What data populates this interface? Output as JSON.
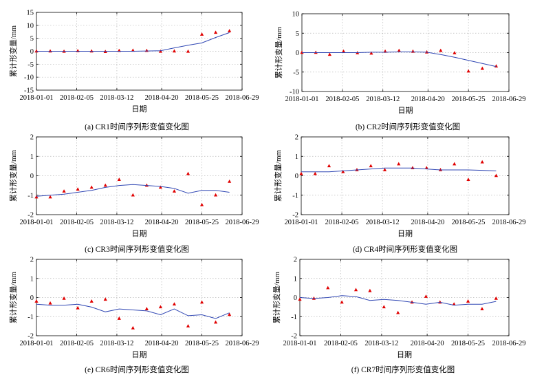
{
  "figure": {
    "subplots": [
      {
        "caption": "(a) CR1时间序列形变值变化图"
      },
      {
        "caption": "(b) CR2时间序列形变值变化图"
      },
      {
        "caption": "(c) CR3时间序列形变值变化图"
      },
      {
        "caption": "(d) CR4时间序列形变值变化图"
      },
      {
        "caption": "(e) CR6时间序列形变值变化图"
      },
      {
        "caption": "(f) CR7时间序列形变值变化图"
      }
    ]
  },
  "chart_data": [
    {
      "type": "line",
      "title": "(a) CR1时间序列形变值变化图",
      "xlabel": "日期",
      "ylabel": "累计形变量/mm",
      "xlim": [
        "2018-01-01",
        "2018-06-29"
      ],
      "ylim": [
        -15,
        15
      ],
      "xticks": [
        "2018-01-01",
        "2018-02-05",
        "2018-03-12",
        "2018-04-20",
        "2018-05-25",
        "2018-06-29"
      ],
      "yticks": [
        -15,
        -10,
        -5,
        0,
        5,
        10,
        15
      ],
      "grid": true,
      "markers": {
        "shape": "triangle",
        "color": "#e00000"
      },
      "line_color": "#2f46b3",
      "series": [
        {
          "kind": "markers",
          "x": [
            "2018-01-01",
            "2018-01-13",
            "2018-01-25",
            "2018-02-06",
            "2018-02-18",
            "2018-03-02",
            "2018-03-14",
            "2018-03-26",
            "2018-04-07",
            "2018-04-19",
            "2018-05-01",
            "2018-05-13",
            "2018-05-25",
            "2018-06-06",
            "2018-06-18"
          ],
          "y": [
            0.0,
            0.0,
            -0.1,
            0.1,
            0.0,
            -0.2,
            0.2,
            0.3,
            0.2,
            -0.1,
            0.0,
            -0.1,
            6.5,
            7.2,
            7.8
          ]
        },
        {
          "kind": "line",
          "x": [
            "2018-01-01",
            "2018-01-13",
            "2018-01-25",
            "2018-02-06",
            "2018-02-18",
            "2018-03-02",
            "2018-03-14",
            "2018-03-26",
            "2018-04-07",
            "2018-04-19",
            "2018-05-01",
            "2018-05-13",
            "2018-05-25",
            "2018-06-06",
            "2018-06-18"
          ],
          "y": [
            0.0,
            0.0,
            0.0,
            0.0,
            0.0,
            0.0,
            0.0,
            0.0,
            0.1,
            0.2,
            1.3,
            2.3,
            3.2,
            5.3,
            7.2
          ]
        }
      ]
    },
    {
      "type": "line",
      "title": "(b) CR2时间序列形变值变化图",
      "xlabel": "日期",
      "ylabel": "累计形变量/mm",
      "xlim": [
        "2018-01-01",
        "2018-06-29"
      ],
      "ylim": [
        -10,
        10
      ],
      "xticks": [
        "2018-01-01",
        "2018-02-05",
        "2018-03-12",
        "2018-04-20",
        "2018-05-25",
        "2018-06-29"
      ],
      "yticks": [
        -10,
        -5,
        0,
        5,
        10
      ],
      "grid": true,
      "markers": {
        "shape": "triangle",
        "color": "#e00000"
      },
      "line_color": "#2f46b3",
      "series": [
        {
          "kind": "markers",
          "x": [
            "2018-01-01",
            "2018-01-13",
            "2018-01-25",
            "2018-02-06",
            "2018-02-18",
            "2018-03-02",
            "2018-03-14",
            "2018-03-26",
            "2018-04-07",
            "2018-04-19",
            "2018-05-01",
            "2018-05-13",
            "2018-05-25",
            "2018-06-06",
            "2018-06-18"
          ],
          "y": [
            0.0,
            0.0,
            -0.5,
            0.3,
            -0.1,
            -0.2,
            0.3,
            0.5,
            0.3,
            0.1,
            0.5,
            -0.1,
            -4.8,
            -4.1,
            -3.5
          ]
        },
        {
          "kind": "line",
          "x": [
            "2018-01-01",
            "2018-01-13",
            "2018-01-25",
            "2018-02-06",
            "2018-02-18",
            "2018-03-02",
            "2018-03-14",
            "2018-03-26",
            "2018-04-07",
            "2018-04-19",
            "2018-05-01",
            "2018-05-13",
            "2018-05-25",
            "2018-06-06",
            "2018-06-18"
          ],
          "y": [
            0.0,
            0.0,
            0.0,
            0.0,
            0.0,
            0.1,
            0.1,
            0.2,
            0.2,
            0.1,
            -0.5,
            -1.2,
            -2.0,
            -2.8,
            -3.6
          ]
        }
      ]
    },
    {
      "type": "line",
      "title": "(c) CR3时间序列形变值变化图",
      "xlabel": "日期",
      "ylabel": "累计形变量/mm",
      "xlim": [
        "2018-01-01",
        "2018-06-29"
      ],
      "ylim": [
        -2,
        2
      ],
      "xticks": [
        "2018-01-01",
        "2018-02-05",
        "2018-03-12",
        "2018-04-20",
        "2018-05-25",
        "2018-06-29"
      ],
      "yticks": [
        -2,
        -1,
        0,
        1,
        2
      ],
      "grid": true,
      "markers": {
        "shape": "triangle",
        "color": "#e00000"
      },
      "line_color": "#2f46b3",
      "series": [
        {
          "kind": "markers",
          "x": [
            "2018-01-01",
            "2018-01-13",
            "2018-01-25",
            "2018-02-06",
            "2018-02-18",
            "2018-03-02",
            "2018-03-14",
            "2018-03-26",
            "2018-04-07",
            "2018-04-19",
            "2018-05-01",
            "2018-05-13",
            "2018-05-25",
            "2018-06-06",
            "2018-06-18"
          ],
          "y": [
            -1.1,
            -1.1,
            -0.8,
            -0.7,
            -0.6,
            -0.5,
            -0.2,
            -1.0,
            -0.5,
            -0.6,
            -0.8,
            0.1,
            -1.5,
            -1.0,
            -0.3
          ]
        },
        {
          "kind": "line",
          "x": [
            "2018-01-01",
            "2018-01-13",
            "2018-01-25",
            "2018-02-06",
            "2018-02-18",
            "2018-03-02",
            "2018-03-14",
            "2018-03-26",
            "2018-04-07",
            "2018-04-19",
            "2018-05-01",
            "2018-05-13",
            "2018-05-25",
            "2018-06-06",
            "2018-06-18"
          ],
          "y": [
            -1.05,
            -1.0,
            -0.95,
            -0.85,
            -0.75,
            -0.6,
            -0.5,
            -0.45,
            -0.5,
            -0.55,
            -0.65,
            -0.9,
            -0.75,
            -0.75,
            -0.85
          ]
        }
      ]
    },
    {
      "type": "line",
      "title": "(d) CR4时间序列形变值变化图",
      "xlabel": "日期",
      "ylabel": "累计形变量/mm",
      "xlim": [
        "2018-01-01",
        "2018-06-29"
      ],
      "ylim": [
        -2,
        2
      ],
      "xticks": [
        "2018-01-01",
        "2018-02-05",
        "2018-03-12",
        "2018-04-20",
        "2018-05-25",
        "2018-06-29"
      ],
      "yticks": [
        -2,
        -1,
        0,
        1,
        2
      ],
      "grid": true,
      "markers": {
        "shape": "triangle",
        "color": "#e00000"
      },
      "line_color": "#2f46b3",
      "series": [
        {
          "kind": "markers",
          "x": [
            "2018-01-01",
            "2018-01-13",
            "2018-01-25",
            "2018-02-06",
            "2018-02-18",
            "2018-03-02",
            "2018-03-14",
            "2018-03-26",
            "2018-04-07",
            "2018-04-19",
            "2018-05-01",
            "2018-05-13",
            "2018-05-25",
            "2018-06-06",
            "2018-06-18"
          ],
          "y": [
            0.1,
            0.1,
            0.5,
            0.2,
            0.3,
            0.5,
            0.3,
            0.6,
            0.4,
            0.4,
            0.3,
            0.6,
            -0.2,
            0.7,
            0.0
          ]
        },
        {
          "kind": "line",
          "x": [
            "2018-01-01",
            "2018-01-13",
            "2018-01-25",
            "2018-02-06",
            "2018-02-18",
            "2018-03-02",
            "2018-03-14",
            "2018-03-26",
            "2018-04-07",
            "2018-04-19",
            "2018-05-01",
            "2018-05-13",
            "2018-05-25",
            "2018-06-06",
            "2018-06-18"
          ],
          "y": [
            0.2,
            0.2,
            0.2,
            0.25,
            0.3,
            0.35,
            0.4,
            0.4,
            0.4,
            0.35,
            0.3,
            0.3,
            0.3,
            0.28,
            0.25
          ]
        }
      ]
    },
    {
      "type": "line",
      "title": "(e) CR6时间序列形变值变化图",
      "xlabel": "日期",
      "ylabel": "累计形变量/mm",
      "xlim": [
        "2018-01-01",
        "2018-06-29"
      ],
      "ylim": [
        -2,
        2
      ],
      "xticks": [
        "2018-01-01",
        "2018-02-05",
        "2018-03-12",
        "2018-04-20",
        "2018-05-25",
        "2018-06-29"
      ],
      "yticks": [
        -2,
        -1,
        0,
        1,
        2
      ],
      "grid": true,
      "markers": {
        "shape": "triangle",
        "color": "#e00000"
      },
      "line_color": "#2f46b3",
      "series": [
        {
          "kind": "markers",
          "x": [
            "2018-01-01",
            "2018-01-13",
            "2018-01-25",
            "2018-02-06",
            "2018-02-18",
            "2018-03-02",
            "2018-03-14",
            "2018-03-26",
            "2018-04-07",
            "2018-04-19",
            "2018-05-01",
            "2018-05-13",
            "2018-05-25",
            "2018-06-06",
            "2018-06-18"
          ],
          "y": [
            -0.2,
            -0.3,
            -0.05,
            -0.55,
            -0.2,
            -0.1,
            -1.1,
            -1.6,
            -0.6,
            -0.5,
            -0.35,
            -1.5,
            -0.25,
            -1.3,
            -0.9
          ]
        },
        {
          "kind": "line",
          "x": [
            "2018-01-01",
            "2018-01-13",
            "2018-01-25",
            "2018-02-06",
            "2018-02-18",
            "2018-03-02",
            "2018-03-14",
            "2018-03-26",
            "2018-04-07",
            "2018-04-19",
            "2018-05-01",
            "2018-05-13",
            "2018-05-25",
            "2018-06-06",
            "2018-06-18"
          ],
          "y": [
            -0.35,
            -0.4,
            -0.4,
            -0.35,
            -0.5,
            -0.75,
            -0.6,
            -0.65,
            -0.7,
            -0.9,
            -0.6,
            -0.95,
            -0.9,
            -1.1,
            -0.8
          ]
        }
      ]
    },
    {
      "type": "line",
      "title": "(f) CR7时间序列形变值变化图",
      "xlabel": "日期",
      "ylabel": "累计形变量/mm",
      "xlim": [
        "2018-01-01",
        "2018-06-29"
      ],
      "ylim": [
        -2,
        2
      ],
      "xticks": [
        "2018-01-01",
        "2018-02-05",
        "2018-03-12",
        "2018-04-20",
        "2018-05-25",
        "2018-06-29"
      ],
      "yticks": [
        -2,
        -1,
        0,
        1,
        2
      ],
      "grid": true,
      "markers": {
        "shape": "triangle",
        "color": "#e00000"
      },
      "line_color": "#2f46b3",
      "series": [
        {
          "kind": "markers",
          "x": [
            "2018-01-01",
            "2018-01-13",
            "2018-01-25",
            "2018-02-06",
            "2018-02-18",
            "2018-03-02",
            "2018-03-14",
            "2018-03-26",
            "2018-04-07",
            "2018-04-19",
            "2018-05-01",
            "2018-05-13",
            "2018-05-25",
            "2018-06-06",
            "2018-06-18"
          ],
          "y": [
            -0.1,
            -0.05,
            0.5,
            -0.25,
            0.4,
            0.35,
            -0.5,
            -0.8,
            -0.25,
            0.05,
            -0.25,
            -0.35,
            -0.2,
            -0.6,
            -0.05
          ]
        },
        {
          "kind": "line",
          "x": [
            "2018-01-01",
            "2018-01-13",
            "2018-01-25",
            "2018-02-06",
            "2018-02-18",
            "2018-03-02",
            "2018-03-14",
            "2018-03-26",
            "2018-04-07",
            "2018-04-19",
            "2018-05-01",
            "2018-05-13",
            "2018-05-25",
            "2018-06-06",
            "2018-06-18"
          ],
          "y": [
            0.0,
            -0.05,
            0.0,
            0.1,
            0.05,
            -0.15,
            -0.1,
            -0.15,
            -0.25,
            -0.35,
            -0.25,
            -0.4,
            -0.35,
            -0.35,
            -0.2
          ]
        }
      ]
    }
  ]
}
